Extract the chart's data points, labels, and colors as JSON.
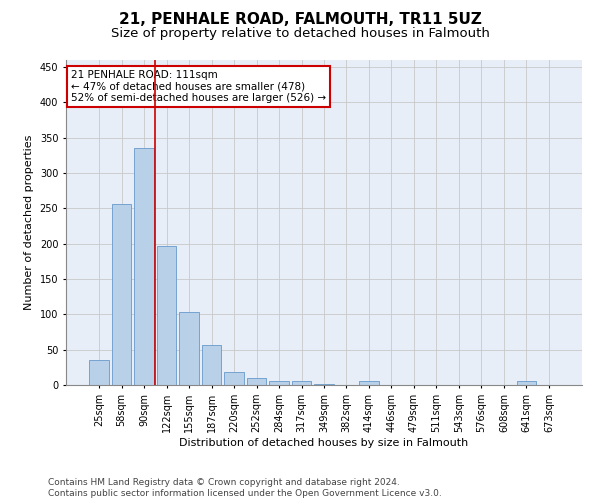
{
  "title": "21, PENHALE ROAD, FALMOUTH, TR11 5UZ",
  "subtitle": "Size of property relative to detached houses in Falmouth",
  "xlabel": "Distribution of detached houses by size in Falmouth",
  "ylabel": "Number of detached properties",
  "bins": [
    "25sqm",
    "58sqm",
    "90sqm",
    "122sqm",
    "155sqm",
    "187sqm",
    "220sqm",
    "252sqm",
    "284sqm",
    "317sqm",
    "349sqm",
    "382sqm",
    "414sqm",
    "446sqm",
    "479sqm",
    "511sqm",
    "543sqm",
    "576sqm",
    "608sqm",
    "641sqm",
    "673sqm"
  ],
  "values": [
    35,
    256,
    336,
    197,
    103,
    57,
    19,
    10,
    6,
    5,
    2,
    0,
    5,
    0,
    0,
    0,
    0,
    0,
    0,
    5,
    0
  ],
  "bar_color": "#b8d0e8",
  "bar_edge_color": "#6699cc",
  "property_line_color": "#cc0000",
  "annotation_text": "21 PENHALE ROAD: 111sqm\n← 47% of detached houses are smaller (478)\n52% of semi-detached houses are larger (526) →",
  "annotation_box_color": "#ffffff",
  "annotation_box_edge_color": "#cc0000",
  "ylim": [
    0,
    460
  ],
  "yticks": [
    0,
    50,
    100,
    150,
    200,
    250,
    300,
    350,
    400,
    450
  ],
  "footer_line1": "Contains HM Land Registry data © Crown copyright and database right 2024.",
  "footer_line2": "Contains public sector information licensed under the Open Government Licence v3.0.",
  "background_color": "#ffffff",
  "plot_bg_color": "#e8eef8",
  "grid_color": "#c8c8c8",
  "title_fontsize": 11,
  "subtitle_fontsize": 9.5,
  "axis_label_fontsize": 8,
  "tick_fontsize": 7,
  "annotation_fontsize": 7.5,
  "footer_fontsize": 6.5
}
